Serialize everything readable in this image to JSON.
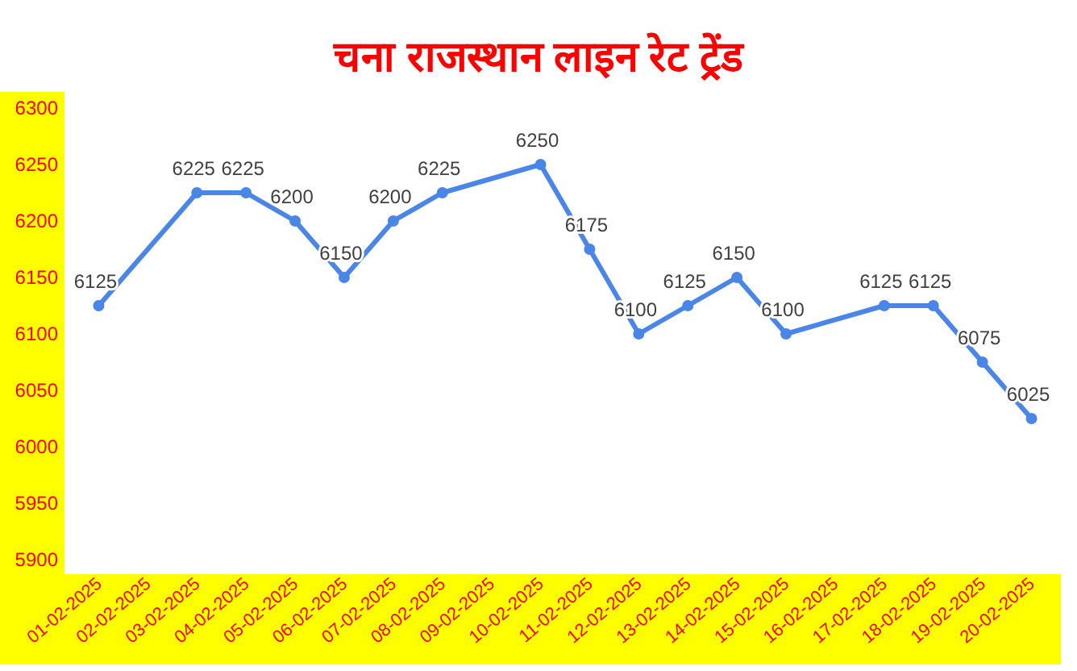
{
  "chart_data": {
    "type": "line",
    "title": "चना राजस्थान लाइन रेट ट्रेंड",
    "categories": [
      "01-02-2025",
      "02-02-2025",
      "03-02-2025",
      "04-02-2025",
      "05-02-2025",
      "06-02-2025",
      "07-02-2025",
      "08-02-2025",
      "09-02-2025",
      "10-02-2025",
      "11-02-2025",
      "12-02-2025",
      "13-02-2025",
      "14-02-2025",
      "15-02-2025",
      "16-02-2025",
      "17-02-2025",
      "18-02-2025",
      "19-02-2025",
      "20-02-2025"
    ],
    "values": [
      6125,
      null,
      6225,
      6225,
      6200,
      6150,
      6200,
      6225,
      null,
      6250,
      6175,
      6100,
      6125,
      6150,
      6100,
      null,
      6125,
      6125,
      6075,
      6025
    ],
    "color": "#4a86e8",
    "marker": "circle",
    "line_style": "solid",
    "data_labels": true,
    "ylim": [
      5900,
      6300
    ],
    "yticks": [
      5900,
      5950,
      6000,
      6050,
      6100,
      6150,
      6200,
      6250,
      6300
    ]
  }
}
